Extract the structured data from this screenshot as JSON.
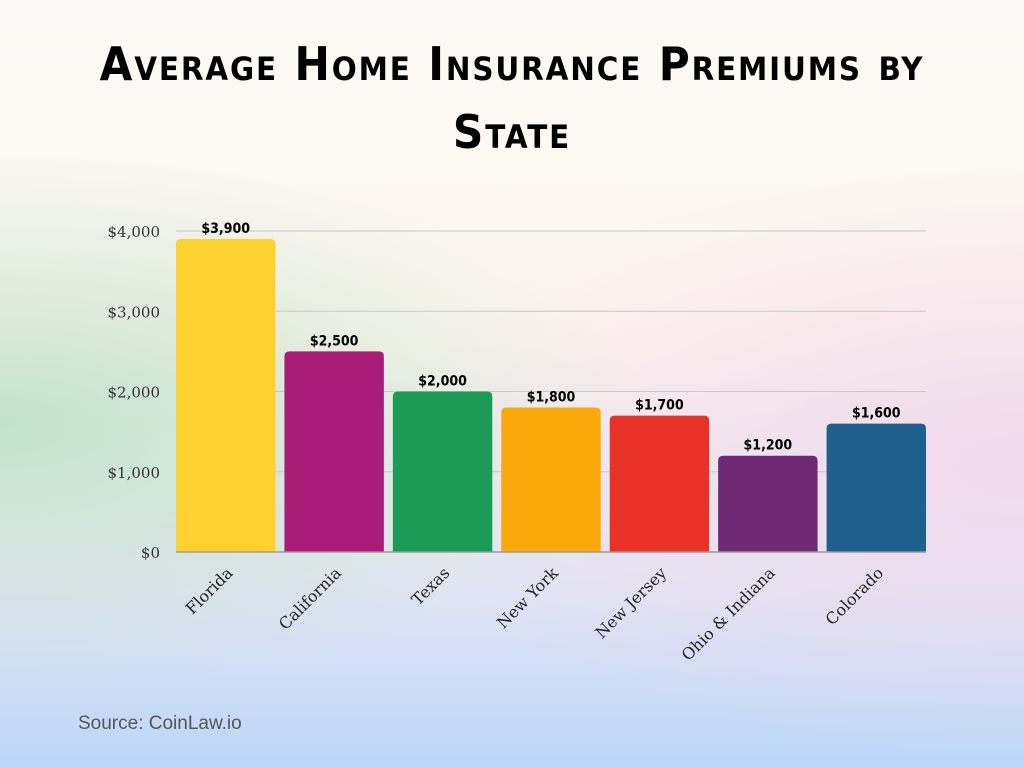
{
  "chart_data": {
    "type": "bar",
    "title": "Average Home Insurance Premiums by State",
    "categories": [
      "Florida",
      "California",
      "Texas",
      "New York",
      "New Jersey",
      "Ohio & Indiana",
      "Colorado"
    ],
    "values": [
      3900,
      2500,
      2000,
      1800,
      1700,
      1200,
      1600
    ],
    "data_labels": [
      "$3,900",
      "$2,500",
      "$2,000",
      "$1,800",
      "$1,700",
      "$1,200",
      "$1,600"
    ],
    "colors": [
      "#fdd130",
      "#a91d78",
      "#1b9b55",
      "#fba80c",
      "#e93227",
      "#6f2873",
      "#1f608d"
    ],
    "yticks": [
      0,
      1000,
      2000,
      3000,
      4000
    ],
    "ytick_labels": [
      "$0",
      "$1,000",
      "$2,000",
      "$3,000",
      "$4,000"
    ],
    "ylim": [
      0,
      4000
    ],
    "grid": true,
    "xlabel": "",
    "ylabel": ""
  },
  "source": "Source: CoinLaw.io"
}
